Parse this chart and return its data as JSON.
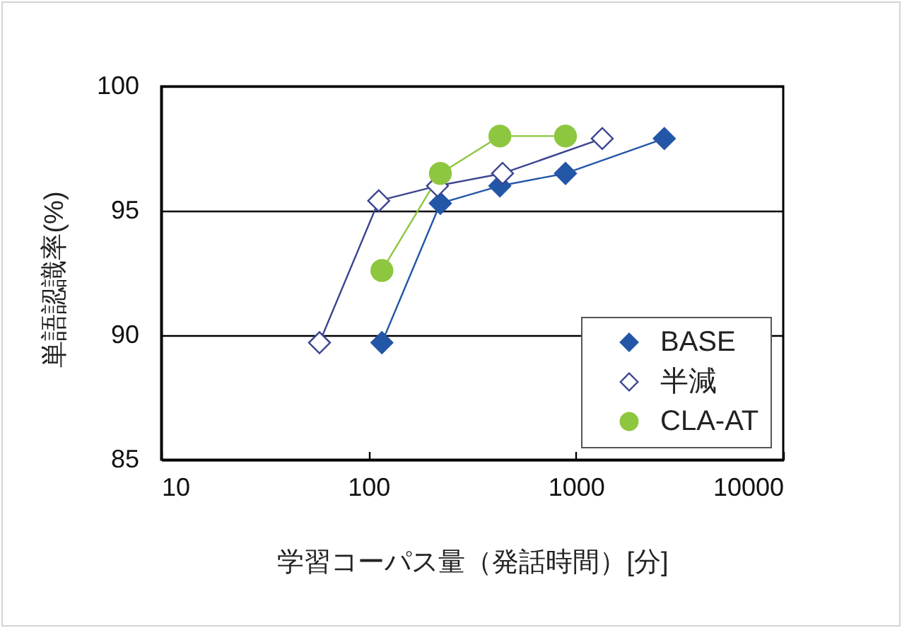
{
  "chart_data": {
    "type": "line",
    "xlabel": "学習コーパス量（発話時間）[分]",
    "ylabel": "単語認識率(%)",
    "log": "x",
    "xlim": [
      10,
      10000
    ],
    "xticks": [
      10,
      100,
      1000,
      10000
    ],
    "ylim": [
      85,
      100
    ],
    "yticks": [
      85,
      90,
      95,
      100
    ],
    "grid": "y",
    "legend": "bottom right",
    "series": [
      {
        "name": "BASE",
        "color": "#2356a6",
        "marker": "diamond",
        "x": [
          116,
          222,
          430,
          891,
          2670
        ],
        "values": [
          89.7,
          95.3,
          96.0,
          96.5,
          97.9
        ]
      },
      {
        "name": "半減",
        "color": "#3b4590",
        "colors": [
          "#ffffff",
          "#ffffff",
          "#ffffff",
          "#ffffff",
          "#ffffff"
        ],
        "marker": "diamond",
        "x": [
          58,
          112,
          215,
          443,
          1340
        ],
        "values": [
          89.7,
          95.4,
          96.0,
          96.5,
          97.9
        ]
      },
      {
        "name": "CLA-AT",
        "color": "#8dc63f",
        "marker": "circle",
        "x": [
          116,
          222,
          430,
          891
        ],
        "values": [
          92.6,
          96.5,
          98.0,
          98.0
        ]
      }
    ]
  }
}
